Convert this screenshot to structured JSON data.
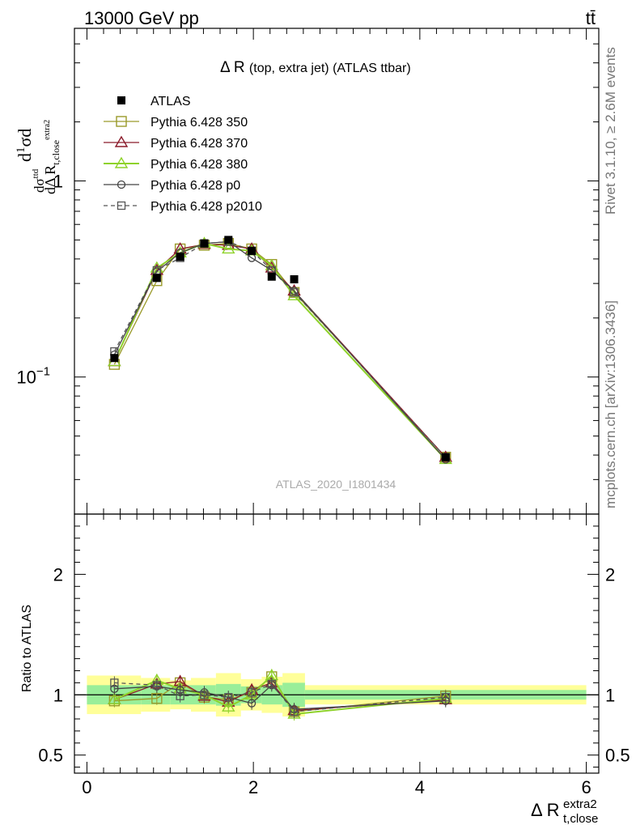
{
  "header": {
    "energy_label": "13000 GeV pp",
    "process_label": "tt̄"
  },
  "side_labels": {
    "rivet": "Rivet 3.1.10, ≥ 2.6M events",
    "source": "mcplots.cern.ch [arXiv:1306.3436]"
  },
  "chart_data": [
    {
      "type": "line",
      "title": "Δ R (top, extra jet) (ATLAS ttbar)",
      "ylabel": "1/σ dσ/dΔR",
      "yscale": "log",
      "xlim": [
        -0.15,
        6.15
      ],
      "ylim": [
        0.02,
        6.0
      ],
      "yticks": [
        {
          "value": 0.1,
          "label": "10",
          "sup": "−1"
        },
        {
          "value": 1,
          "label": "1",
          "sup": ""
        }
      ],
      "xticks": [
        0,
        2,
        4,
        6
      ],
      "watermark": "ATLAS_2020_I1801434",
      "legend_placement": "top-left",
      "data_reference": {
        "name": "ATLAS",
        "x": [
          0.33,
          0.84,
          1.12,
          1.41,
          1.7,
          1.98,
          2.22,
          2.49,
          4.31
        ],
        "y": [
          0.125,
          0.32,
          0.41,
          0.48,
          0.5,
          0.44,
          0.325,
          0.315,
          0.039
        ]
      },
      "series": [
        {
          "name": "Pythia 6.428 350",
          "color": "#9a9a2a",
          "marker": "square-open",
          "dash": "solid",
          "x": [
            0.33,
            0.84,
            1.12,
            1.41,
            1.7,
            1.98,
            2.22,
            2.49,
            4.31
          ],
          "y": [
            0.116,
            0.31,
            0.45,
            0.47,
            0.48,
            0.45,
            0.375,
            0.27,
            0.039
          ]
        },
        {
          "name": "Pythia 6.428 370",
          "color": "#8b1a2a",
          "marker": "triangle-open",
          "dash": "solid",
          "x": [
            0.33,
            0.84,
            1.12,
            1.41,
            1.7,
            1.98,
            2.22,
            2.49,
            4.31
          ],
          "y": [
            0.12,
            0.35,
            0.45,
            0.475,
            0.47,
            0.45,
            0.36,
            0.275,
            0.039
          ]
        },
        {
          "name": "Pythia 6.428 380",
          "color": "#8ed22a",
          "marker": "triangle-open",
          "dash": "solid",
          "x": [
            0.33,
            0.84,
            1.12,
            1.41,
            1.7,
            1.98,
            2.22,
            2.49,
            4.31
          ],
          "y": [
            0.12,
            0.36,
            0.43,
            0.48,
            0.45,
            0.44,
            0.37,
            0.26,
            0.038
          ]
        },
        {
          "name": "Pythia 6.428 p0",
          "color": "#444444",
          "marker": "circle-open",
          "dash": "solid",
          "x": [
            0.33,
            0.84,
            1.12,
            1.41,
            1.7,
            1.98,
            2.22,
            2.49,
            4.31
          ],
          "y": [
            0.13,
            0.345,
            0.43,
            0.48,
            0.49,
            0.405,
            0.35,
            0.275,
            0.038
          ]
        },
        {
          "name": "Pythia 6.428 p2010",
          "color": "#555555",
          "marker": "square-open-small",
          "dash": "dashed",
          "x": [
            0.33,
            0.84,
            1.12,
            1.41,
            1.7,
            1.98,
            2.22,
            2.49,
            4.31
          ],
          "y": [
            0.135,
            0.35,
            0.405,
            0.48,
            0.49,
            0.44,
            0.35,
            0.27,
            0.039
          ]
        }
      ]
    },
    {
      "type": "line",
      "ylabel": "Ratio to ATLAS",
      "xlabel": "Δ R",
      "xlabel_sup": "extra2",
      "xlabel_sub": "t,close",
      "xlim": [
        -0.15,
        6.15
      ],
      "ylim": [
        0.35,
        2.5
      ],
      "yticks": [
        0.5,
        1,
        2
      ],
      "xticks": [
        0,
        2,
        4,
        6
      ],
      "bands": {
        "edges": [
          0,
          0.65,
          1.0,
          1.25,
          1.55,
          1.85,
          2.1,
          2.35,
          2.62,
          6.0
        ],
        "inner": [
          [
            0.92,
            1.08
          ],
          [
            0.92,
            1.08
          ],
          [
            0.92,
            1.08
          ],
          [
            0.92,
            1.08
          ],
          [
            0.91,
            1.09
          ],
          [
            0.93,
            1.07
          ],
          [
            0.92,
            1.08
          ],
          [
            0.9,
            1.1
          ],
          [
            0.96,
            1.04
          ]
        ],
        "outer": [
          [
            0.84,
            1.16
          ],
          [
            0.86,
            1.14
          ],
          [
            0.88,
            1.12
          ],
          [
            0.86,
            1.14
          ],
          [
            0.82,
            1.18
          ],
          [
            0.87,
            1.13
          ],
          [
            0.85,
            1.15
          ],
          [
            0.82,
            1.18
          ],
          [
            0.92,
            1.08
          ]
        ]
      },
      "series": [
        {
          "name": "Pythia 6.428 350",
          "color": "#9a9a2a",
          "marker": "square-open",
          "dash": "solid",
          "x": [
            0.33,
            0.84,
            1.12,
            1.41,
            1.7,
            1.98,
            2.22,
            2.49,
            4.31
          ],
          "y": [
            0.95,
            0.97,
            1.1,
            0.98,
            0.96,
            1.02,
            1.15,
            0.86,
            0.99
          ]
        },
        {
          "name": "Pythia 6.428 370",
          "color": "#8b1a2a",
          "marker": "triangle-open",
          "dash": "solid",
          "x": [
            0.33,
            0.84,
            1.12,
            1.41,
            1.7,
            1.98,
            2.22,
            2.49,
            4.31
          ],
          "y": [
            0.96,
            1.09,
            1.11,
            0.99,
            0.94,
            1.04,
            1.1,
            0.87,
            0.96
          ]
        },
        {
          "name": "Pythia 6.428 380",
          "color": "#8ed22a",
          "marker": "triangle-open",
          "dash": "solid",
          "x": [
            0.33,
            0.84,
            1.12,
            1.41,
            1.7,
            1.98,
            2.22,
            2.49,
            4.31
          ],
          "y": [
            0.96,
            1.12,
            1.05,
            1.0,
            0.9,
            1.0,
            1.16,
            0.84,
            0.97
          ]
        },
        {
          "name": "Pythia 6.428 p0",
          "color": "#444444",
          "marker": "circle-open",
          "dash": "solid",
          "x": [
            0.33,
            0.84,
            1.12,
            1.41,
            1.7,
            1.98,
            2.22,
            2.49,
            4.31
          ],
          "y": [
            1.05,
            1.07,
            1.04,
            1.02,
            0.98,
            0.93,
            1.08,
            0.88,
            0.95
          ]
        },
        {
          "name": "Pythia 6.428 p2010",
          "color": "#555555",
          "marker": "square-open-small",
          "dash": "dashed",
          "x": [
            0.33,
            0.84,
            1.12,
            1.41,
            1.7,
            1.98,
            2.22,
            2.49,
            4.31
          ],
          "y": [
            1.1,
            1.08,
            0.99,
            1.0,
            0.98,
            1.02,
            1.09,
            0.86,
            0.98
          ]
        }
      ]
    }
  ]
}
